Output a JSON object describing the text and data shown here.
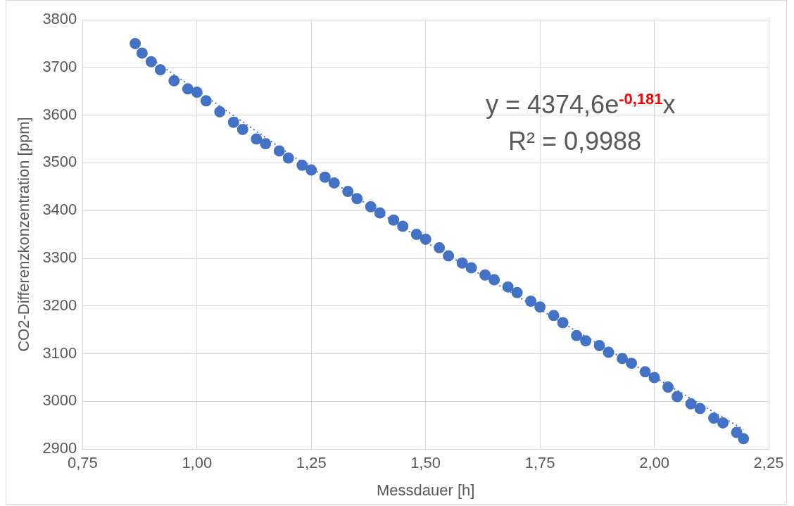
{
  "chart_data": {
    "type": "scatter",
    "xlabel": "Messdauer [h]",
    "ylabel": "CO2-Differenzkonzentration [ppm]",
    "annotations": [
      "y = 4374,6e$^{-0,181}$x",
      "R² = 0,9988"
    ],
    "x": [
      0.865,
      0.88,
      0.9,
      0.92,
      0.95,
      0.98,
      1.0,
      1.02,
      1.05,
      1.08,
      1.1,
      1.13,
      1.15,
      1.18,
      1.2,
      1.23,
      1.25,
      1.28,
      1.3,
      1.33,
      1.35,
      1.38,
      1.4,
      1.43,
      1.45,
      1.48,
      1.5,
      1.53,
      1.55,
      1.58,
      1.6,
      1.63,
      1.65,
      1.68,
      1.7,
      1.73,
      1.75,
      1.78,
      1.8,
      1.83,
      1.85,
      1.88,
      1.9,
      1.93,
      1.95,
      1.98,
      2.0,
      2.03,
      2.05,
      2.08,
      2.1,
      2.13,
      2.15,
      2.18,
      2.195
    ],
    "series": [
      {
        "color": "#4472c4",
        "marker": "circle",
        "values": [
          3750,
          3730,
          3712,
          3695,
          3672,
          3655,
          3648,
          3630,
          3607,
          3585,
          3570,
          3550,
          3540,
          3525,
          3510,
          3495,
          3485,
          3470,
          3458,
          3440,
          3425,
          3408,
          3395,
          3380,
          3367,
          3350,
          3340,
          3322,
          3305,
          3290,
          3280,
          3265,
          3255,
          3240,
          3228,
          3210,
          3198,
          3180,
          3165,
          3138,
          3127,
          3117,
          3103,
          3090,
          3080,
          3062,
          3050,
          3030,
          3010,
          2995,
          2985,
          2965,
          2955,
          2935,
          2922
        ]
      },
      {
        "type": "line",
        "color": "#4472c4",
        "line_style": "dotted",
        "marker": "none",
        "x": [
          0.865,
          1.2,
          1.5,
          1.85,
          2.195
        ],
        "values": [
          3741,
          3520,
          3334,
          3136,
          2941
        ]
      }
    ],
    "xlim": [
      0.75,
      2.25
    ],
    "xticks": [
      {
        "value": 0.75,
        "label": "0,75"
      },
      {
        "value": 1.0,
        "label": "1,00"
      },
      {
        "value": 1.25,
        "label": "1,25"
      },
      {
        "value": 1.5,
        "label": "1,50"
      },
      {
        "value": 1.75,
        "label": "1,75"
      },
      {
        "value": 2.0,
        "label": "2,00"
      },
      {
        "value": 2.25,
        "label": "2,25"
      }
    ],
    "ylim": [
      2900,
      3800
    ],
    "yticks": [
      2900,
      3000,
      3100,
      3200,
      3300,
      3400,
      3500,
      3600,
      3700,
      3800
    ],
    "grid": true,
    "legend": false
  }
}
